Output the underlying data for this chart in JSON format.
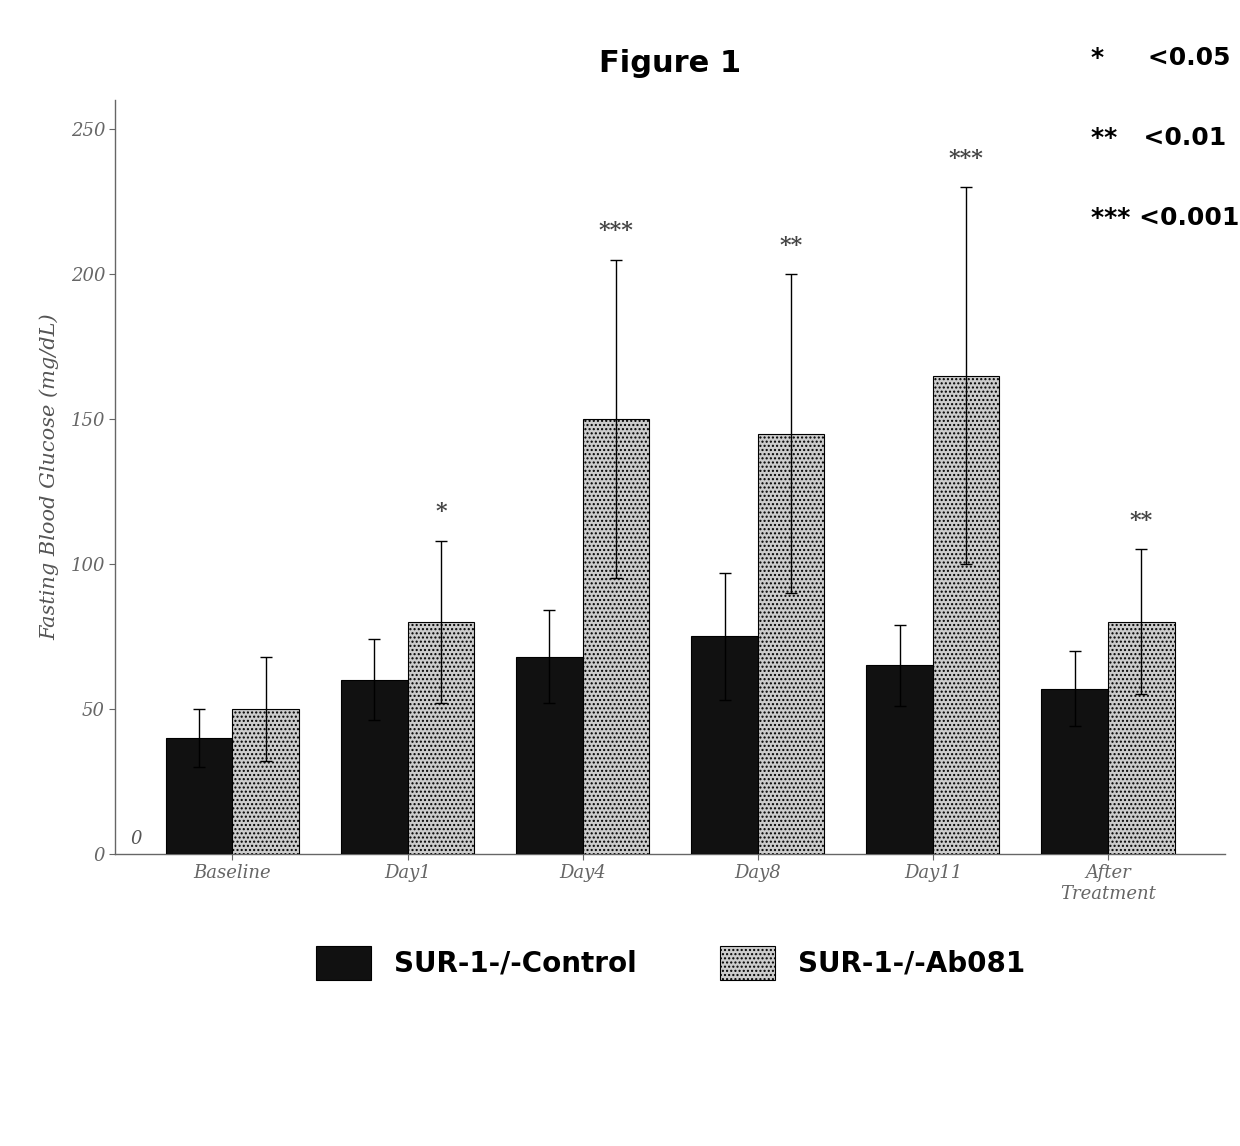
{
  "title": "Figure 1",
  "ylabel": "Fasting Blood Glucose (mg/dL)",
  "categories": [
    "Baseline",
    "Day1",
    "Day4",
    "Day8",
    "Day11",
    "After\nTreatment"
  ],
  "control_values": [
    40,
    60,
    68,
    75,
    65,
    57
  ],
  "ab081_values": [
    50,
    80,
    150,
    145,
    165,
    80
  ],
  "control_errors": [
    10,
    14,
    16,
    22,
    14,
    13
  ],
  "ab081_errors": [
    18,
    28,
    55,
    55,
    65,
    25
  ],
  "control_color": "#111111",
  "ab081_color": "#cccccc",
  "ylim": [
    0,
    260
  ],
  "yticks": [
    0,
    50,
    100,
    150,
    200,
    250
  ],
  "significance": [
    "",
    "*",
    "***",
    "**",
    "***",
    "**"
  ],
  "legend_control": "SUR-1-/-Control",
  "legend_ab081": "SUR-1-/-Ab081",
  "pvalue_lines": [
    "*     <0.05",
    "**   <0.01",
    "*** <0.001"
  ],
  "background_color": "#ffffff",
  "title_fontsize": 22,
  "axis_label_fontsize": 15,
  "tick_fontsize": 13,
  "legend_fontsize": 20,
  "sig_fontsize": 14,
  "pval_fontsize": 18,
  "bar_width": 0.38
}
